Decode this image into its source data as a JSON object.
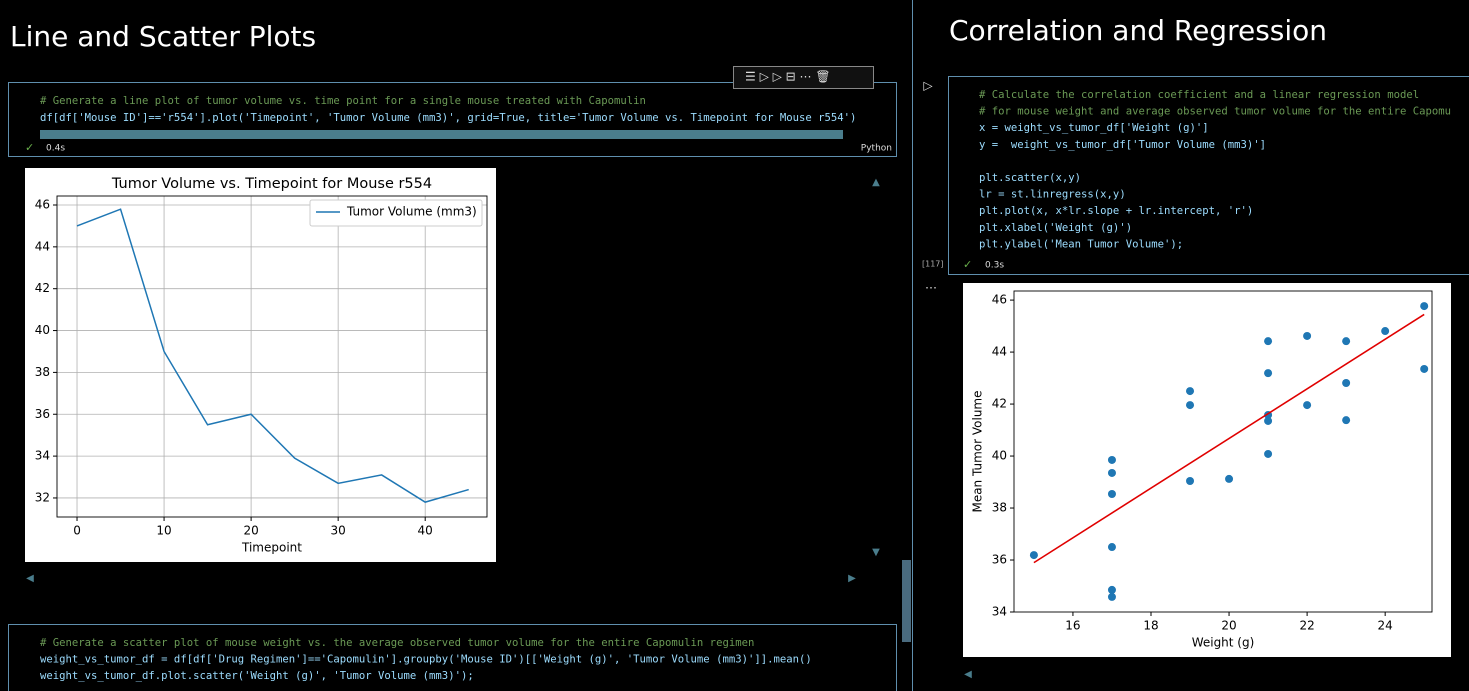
{
  "left": {
    "heading": "Line and Scatter Plots",
    "cell1": {
      "code": [
        "# Generate a line plot of tumor volume vs. time point for a single mouse treated with Capomulin",
        "df[df['Mouse ID']=='r554'].plot('Timepoint', 'Tumor Volume (mm3)', grid=True, title='Tumor Volume vs. Timepoint for Mouse r554')"
      ],
      "time": "0.4s",
      "language": "Python"
    },
    "cell2": {
      "code": [
        "# Generate a scatter plot of mouse weight vs. the average observed tumor volume for the entire Capomulin regimen",
        "weight_vs_tumor_df = df[df['Drug Regimen']=='Capomulin'].groupby('Mouse ID')[['Weight (g)', 'Tumor Volume (mm3)']].mean()",
        "weight_vs_tumor_df.plot.scatter('Weight (g)', 'Tumor Volume (mm3)');"
      ]
    }
  },
  "right": {
    "heading": "Correlation and Regression",
    "cell": {
      "code": [
        [
          "# Calculate the correlation coefficient and a linear regression model",
          "# for mouse weight and average observed tumor volume for the entire Capomu",
          "x = weight_vs_tumor_df['Weight (g)']",
          "y =  weight_vs_tumor_df['Tumor Volume (mm3)']"
        ],
        [
          "plt.scatter(x,y)",
          "lr = st.linregress(x,y)",
          "plt.plot(x, x*lr.slope + lr.intercept, 'r')",
          "plt.xlabel('Weight (g)')",
          "plt.ylabel('Mean Tumor Volume');"
        ]
      ],
      "count": "[117]",
      "time": "0.3s"
    }
  },
  "chart_data": [
    {
      "type": "line",
      "title": "Tumor Volume vs. Timepoint for Mouse r554",
      "x_label": "Timepoint",
      "x": [
        0,
        5,
        10,
        15,
        20,
        25,
        30,
        35,
        40,
        45
      ],
      "series": [
        {
          "name": "Tumor Volume (mm3)",
          "color": "#1f77b4",
          "values": [
            45,
            45.8,
            39.0,
            35.5,
            36.0,
            33.9,
            32.7,
            33.1,
            31.8,
            32.4
          ]
        }
      ],
      "xlim": [
        -2.3,
        47.1
      ],
      "xticks": [
        0,
        10,
        20,
        30,
        40
      ],
      "ylim": [
        31.09,
        46.43
      ],
      "yticks": [
        32,
        34,
        36,
        38,
        40,
        42,
        44,
        46
      ],
      "grid": true,
      "legend": "upper right"
    },
    {
      "type": "scatter",
      "x_label": "Weight (g)",
      "y_label": "Mean Tumor Volume",
      "series": [
        {
          "type": "scatter",
          "color": "#1f77b4",
          "x": [
            15,
            17,
            17,
            17,
            17,
            17,
            17,
            19,
            19,
            19,
            20,
            21,
            21,
            21,
            21,
            21,
            22,
            22,
            23,
            23,
            23,
            24,
            25,
            25
          ],
          "values": [
            36.19,
            39.85,
            39.35,
            38.54,
            36.5,
            34.85,
            34.58,
            42.5,
            41.96,
            39.04,
            39.12,
            44.42,
            43.19,
            41.58,
            41.35,
            40.08,
            44.62,
            41.96,
            44.42,
            42.81,
            41.38,
            44.81,
            45.77,
            43.35
          ]
        },
        {
          "type": "line",
          "color": "#e00000",
          "x": [
            15,
            25
          ],
          "values": [
            35.9,
            45.45
          ]
        }
      ],
      "xlim": [
        14.49,
        25.2
      ],
      "xticks": [
        16,
        18,
        20,
        22,
        24
      ],
      "ylim": [
        34,
        46.35
      ],
      "yticks": [
        34,
        36,
        38,
        40,
        42,
        44,
        46
      ]
    }
  ]
}
